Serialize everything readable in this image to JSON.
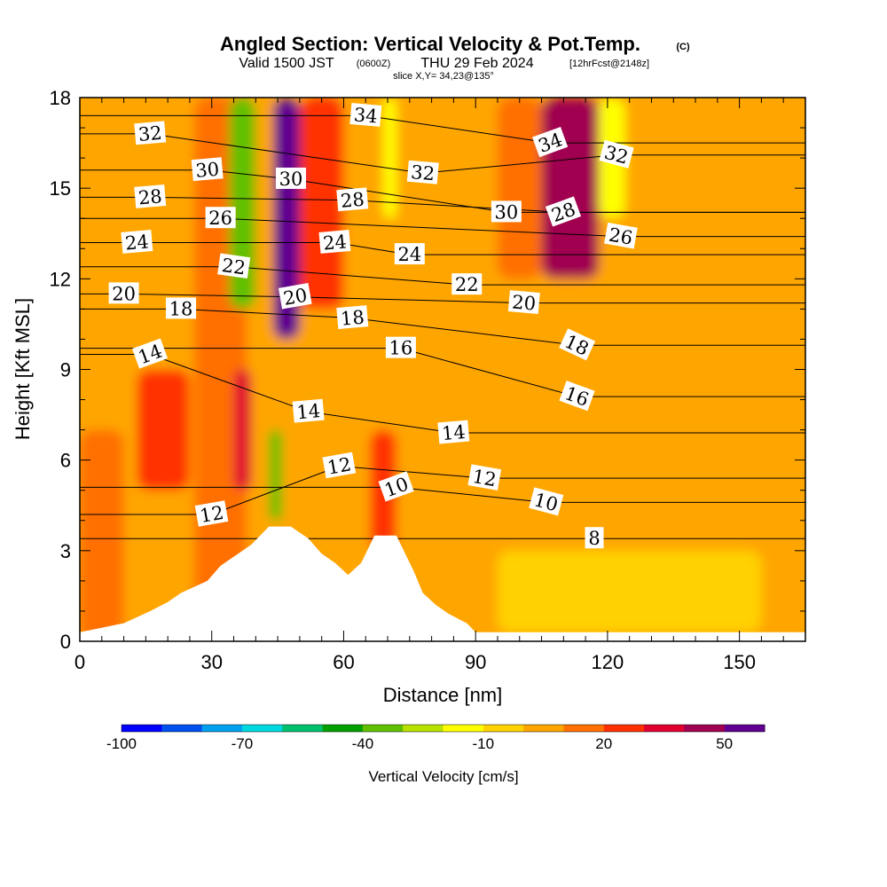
{
  "chart_data": {
    "type": "heatmap",
    "title": "Angled Section: Vertical Velocity & Pot.Temp.",
    "title_unit": "(C)",
    "subtitle_valid": "Valid 1500 JST",
    "subtitle_utc": "(0600Z)",
    "subtitle_date": "THU 29 Feb 2024",
    "subtitle_forecast": "[12hrFcst@2148z]",
    "slice_text": "slice X,Y= 34,23@135°",
    "xlabel": "Distance [nm]",
    "ylabel": "Height [Kft MSL]",
    "xlim": [
      0,
      165
    ],
    "ylim": [
      0,
      18
    ],
    "x_ticks": [
      0,
      30,
      60,
      90,
      120,
      150
    ],
    "y_ticks": [
      0,
      3,
      6,
      9,
      12,
      15,
      18
    ],
    "colorbar": {
      "title": "Vertical Velocity [cm/s]",
      "min": -100,
      "max": 60,
      "step": 10,
      "labels": [
        -100,
        -70,
        -40,
        -10,
        20,
        50
      ],
      "colors": [
        "#0000ff",
        "#0050f0",
        "#00a0f0",
        "#00d8e0",
        "#00c070",
        "#00a000",
        "#60c000",
        "#b8e000",
        "#ffff00",
        "#ffd200",
        "#ffa500",
        "#ff7000",
        "#ff3000",
        "#e00030",
        "#a00050",
        "#600090"
      ]
    },
    "terrain": [
      [
        0,
        0.3
      ],
      [
        10,
        0.6
      ],
      [
        16,
        1
      ],
      [
        20,
        1.3
      ],
      [
        23,
        1.6
      ],
      [
        29,
        2
      ],
      [
        32,
        2.5
      ],
      [
        36,
        2.9
      ],
      [
        39,
        3.2
      ],
      [
        43,
        3.8
      ],
      [
        48,
        3.8
      ],
      [
        52,
        3.4
      ],
      [
        55,
        2.9
      ],
      [
        58,
        2.6
      ],
      [
        61,
        2.2
      ],
      [
        64,
        2.6
      ],
      [
        67,
        3.5
      ],
      [
        72,
        3.5
      ],
      [
        74,
        2.9
      ],
      [
        76,
        2.3
      ],
      [
        78,
        1.6
      ],
      [
        81,
        1.2
      ],
      [
        84,
        0.9
      ],
      [
        88,
        0.6
      ],
      [
        90,
        0.3
      ],
      [
        165,
        0.3
      ]
    ],
    "velocity_features": [
      {
        "x": [
          0,
          165
        ],
        "y": [
          0,
          18
        ],
        "value": 0
      },
      {
        "x": [
          0,
          10
        ],
        "y": [
          0,
          7
        ],
        "value": 10
      },
      {
        "x": [
          13,
          25
        ],
        "y": [
          5,
          9
        ],
        "value": 25
      },
      {
        "x": [
          26,
          38
        ],
        "y": [
          0,
          18
        ],
        "value": 15
      },
      {
        "x": [
          34,
          40
        ],
        "y": [
          11,
          18
        ],
        "value": -40
      },
      {
        "x": [
          35,
          39
        ],
        "y": [
          5,
          9
        ],
        "value": 35
      },
      {
        "x": [
          43,
          46
        ],
        "y": [
          4,
          7
        ],
        "value": -40
      },
      {
        "x": [
          44,
          50
        ],
        "y": [
          10,
          18
        ],
        "value": 55
      },
      {
        "x": [
          50,
          60
        ],
        "y": [
          11,
          18
        ],
        "value": 25
      },
      {
        "x": [
          66,
          72
        ],
        "y": [
          3,
          7
        ],
        "value": 20
      },
      {
        "x": [
          69,
          72
        ],
        "y": [
          14,
          18
        ],
        "value": -20
      },
      {
        "x": [
          95,
          105
        ],
        "y": [
          12,
          18
        ],
        "value": 15
      },
      {
        "x": [
          105,
          118
        ],
        "y": [
          12,
          18
        ],
        "value": 40
      },
      {
        "x": [
          118,
          124
        ],
        "y": [
          14,
          18
        ],
        "value": -20
      },
      {
        "x": [
          95,
          155
        ],
        "y": [
          0.3,
          3
        ],
        "value": -10
      }
    ],
    "contour_labels": [
      {
        "value": "32",
        "x": 16,
        "y": 16.8,
        "angle": -5
      },
      {
        "value": "30",
        "x": 29,
        "y": 15.6,
        "angle": -5
      },
      {
        "value": "28",
        "x": 16,
        "y": 14.7,
        "angle": -5
      },
      {
        "value": "26",
        "x": 32,
        "y": 14,
        "angle": 0
      },
      {
        "value": "24",
        "x": 13,
        "y": 13.2,
        "angle": -5
      },
      {
        "value": "22",
        "x": 35,
        "y": 12.4,
        "angle": 8
      },
      {
        "value": "20",
        "x": 10,
        "y": 11.5,
        "angle": 0
      },
      {
        "value": "18",
        "x": 23,
        "y": 11,
        "angle": 0
      },
      {
        "value": "14",
        "x": 16,
        "y": 9.5,
        "angle": -20
      },
      {
        "value": "34",
        "x": 65,
        "y": 17.4,
        "angle": 5
      },
      {
        "value": "30",
        "x": 48,
        "y": 15.3,
        "angle": 0
      },
      {
        "value": "28",
        "x": 62,
        "y": 14.6,
        "angle": -5
      },
      {
        "value": "24",
        "x": 58,
        "y": 13.2,
        "angle": -5
      },
      {
        "value": "20",
        "x": 49,
        "y": 11.4,
        "angle": -10
      },
      {
        "value": "32",
        "x": 78,
        "y": 15.5,
        "angle": 5
      },
      {
        "value": "24",
        "x": 75,
        "y": 12.8,
        "angle": 0
      },
      {
        "value": "22",
        "x": 88,
        "y": 11.8,
        "angle": 0
      },
      {
        "value": "20",
        "x": 101,
        "y": 11.2,
        "angle": 5
      },
      {
        "value": "30",
        "x": 97,
        "y": 14.2,
        "angle": 0
      },
      {
        "value": "18",
        "x": 62,
        "y": 10.7,
        "angle": -5
      },
      {
        "value": "16",
        "x": 73,
        "y": 9.7,
        "angle": 0
      },
      {
        "value": "34",
        "x": 107,
        "y": 16.5,
        "angle": -20
      },
      {
        "value": "28",
        "x": 110,
        "y": 14.2,
        "angle": -20
      },
      {
        "value": "32",
        "x": 122,
        "y": 16.1,
        "angle": 15
      },
      {
        "value": "26",
        "x": 123,
        "y": 13.4,
        "angle": 10
      },
      {
        "value": "18",
        "x": 113,
        "y": 9.8,
        "angle": 25
      },
      {
        "value": "16",
        "x": 113,
        "y": 8.1,
        "angle": 20
      },
      {
        "value": "14",
        "x": 52,
        "y": 7.6,
        "angle": -5
      },
      {
        "value": "14",
        "x": 85,
        "y": 6.9,
        "angle": -5
      },
      {
        "value": "12",
        "x": 59,
        "y": 5.8,
        "angle": -10
      },
      {
        "value": "12",
        "x": 92,
        "y": 5.4,
        "angle": 10
      },
      {
        "value": "12",
        "x": 30,
        "y": 4.2,
        "angle": -10
      },
      {
        "value": "10",
        "x": 72,
        "y": 5.1,
        "angle": -20
      },
      {
        "value": "10",
        "x": 106,
        "y": 4.6,
        "angle": 15
      },
      {
        "value": "8",
        "x": 117,
        "y": 3.4,
        "angle": 0
      }
    ]
  }
}
